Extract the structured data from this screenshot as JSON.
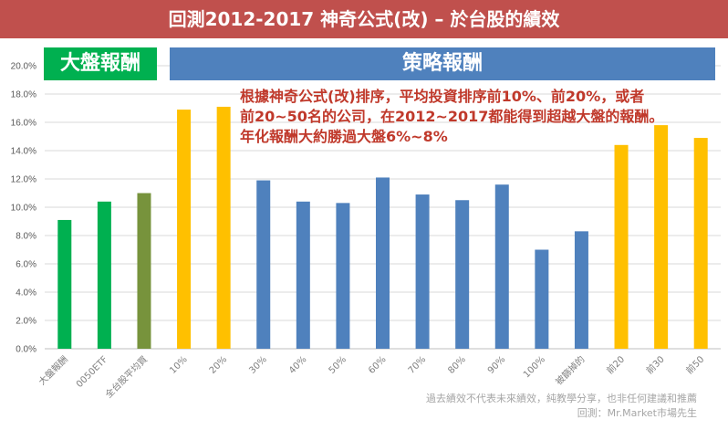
{
  "header": {
    "title": "回測2012-2017 神奇公式(改) – 於台股的績效"
  },
  "labels": {
    "market": "大盤報酬",
    "strategy": "策略報酬"
  },
  "annotation": {
    "lines": [
      "根據神奇公式(改)排序，平均投資排序前10%、前20%，或者",
      "前20~50名的公司，在2012~2017都能得到超越大盤的報酬。",
      "年化報酬大約勝過大盤6%~8%"
    ]
  },
  "footer": {
    "line1": "過去績效不代表未來績效，純教學分享，也非任何建議和推薦",
    "line2": "回測：Mr.Market市場先生"
  },
  "chart_data": {
    "type": "bar",
    "title": "",
    "xlabel": "",
    "ylabel": "",
    "ylim": [
      0,
      0.2
    ],
    "yticks": [
      "0.0%",
      "2.0%",
      "4.0%",
      "6.0%",
      "8.0%",
      "10.0%",
      "12.0%",
      "14.0%",
      "16.0%",
      "18.0%",
      "20.0%"
    ],
    "grid": true,
    "categories": [
      "大盤報酬",
      "0050ETF",
      "全台股平均買",
      "10%",
      "20%",
      "30%",
      "40%",
      "50%",
      "60%",
      "70%",
      "80%",
      "90%",
      "100%",
      "被篩掉的",
      "前20",
      "前30",
      "前50"
    ],
    "values": [
      0.091,
      0.104,
      0.11,
      0.169,
      0.171,
      0.119,
      0.104,
      0.103,
      0.121,
      0.109,
      0.105,
      0.116,
      0.07,
      0.083,
      0.144,
      0.158,
      0.149
    ],
    "colors": [
      "#00b050",
      "#00b050",
      "#77933c",
      "#ffc000",
      "#ffc000",
      "#4f81bd",
      "#4f81bd",
      "#4f81bd",
      "#4f81bd",
      "#4f81bd",
      "#4f81bd",
      "#4f81bd",
      "#4f81bd",
      "#4f81bd",
      "#ffc000",
      "#ffc000",
      "#ffc000"
    ]
  }
}
